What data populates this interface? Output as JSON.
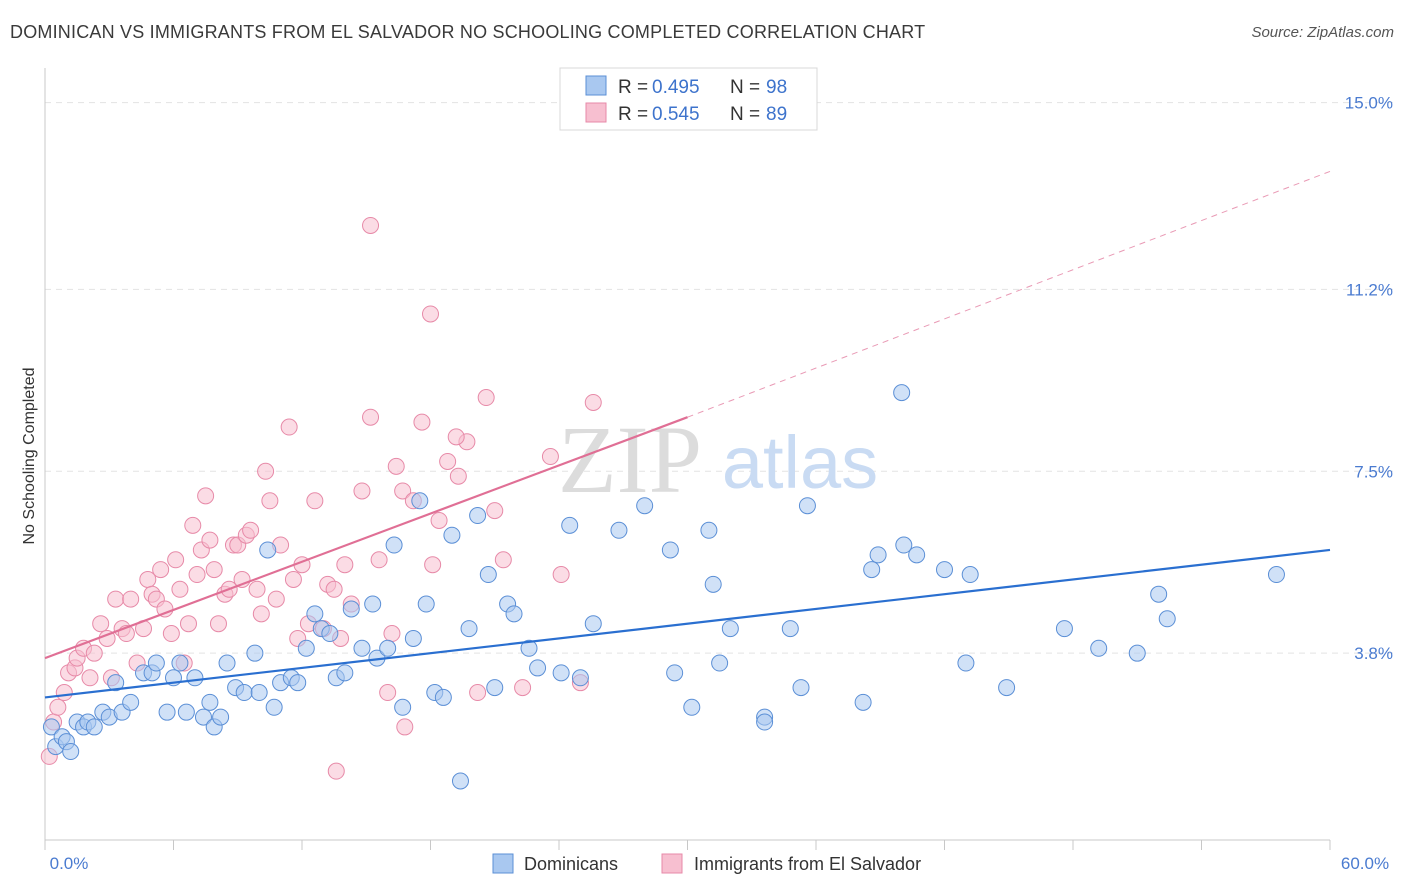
{
  "title": "DOMINICAN VS IMMIGRANTS FROM EL SALVADOR NO SCHOOLING COMPLETED CORRELATION CHART",
  "source": "Source: ZipAtlas.com",
  "watermark": {
    "part1": "ZIP",
    "part2": "atlas"
  },
  "colors": {
    "blue_fill": "#a9c8f0",
    "blue_stroke": "#5b8fd6",
    "blue_line": "#2a6fd0",
    "pink_fill": "#f7bfd0",
    "pink_stroke": "#e78aa8",
    "pink_line": "#e06f95",
    "grid": "#e3e3e3",
    "axis_text": "#4a7bd0"
  },
  "legend": {
    "rows": [
      {
        "r_label": "R = ",
        "r_value": "0.495",
        "n_label": "N = ",
        "n_value": "98"
      },
      {
        "r_label": "R = ",
        "r_value": "0.545",
        "n_label": "N = ",
        "n_value": "89"
      }
    ]
  },
  "chart_data": {
    "type": "scatter",
    "title": "DOMINICAN VS IMMIGRANTS FROM EL SALVADOR NO SCHOOLING COMPLETED CORRELATION CHART",
    "xlabel": "",
    "ylabel": "No Schooling Completed",
    "xlim": [
      0,
      60
    ],
    "ylim": [
      0,
      15.5
    ],
    "x_tick_labels": [
      "0.0%",
      "60.0%"
    ],
    "y_ticks": [
      3.8,
      7.5,
      11.2,
      15.0
    ],
    "y_tick_labels": [
      "3.8%",
      "7.5%",
      "11.2%",
      "15.0%"
    ],
    "grid": "horizontal dashed",
    "legend_position": "top-center",
    "series": [
      {
        "name": "Dominicans",
        "r": 0.495,
        "n": 98,
        "trend": {
          "x0": 0,
          "y0": 2.9,
          "x1": 60,
          "y1": 5.9
        },
        "points": [
          [
            0.3,
            2.3
          ],
          [
            0.5,
            1.9
          ],
          [
            0.8,
            2.1
          ],
          [
            1.0,
            2.0
          ],
          [
            1.2,
            1.8
          ],
          [
            1.5,
            2.4
          ],
          [
            1.8,
            2.3
          ],
          [
            2.0,
            2.4
          ],
          [
            2.3,
            2.3
          ],
          [
            2.7,
            2.6
          ],
          [
            3.0,
            2.5
          ],
          [
            3.3,
            3.2
          ],
          [
            3.6,
            2.6
          ],
          [
            4.0,
            2.8
          ],
          [
            4.6,
            3.4
          ],
          [
            5.0,
            3.4
          ],
          [
            5.2,
            3.6
          ],
          [
            5.7,
            2.6
          ],
          [
            6.0,
            3.3
          ],
          [
            6.3,
            3.6
          ],
          [
            6.6,
            2.6
          ],
          [
            7.0,
            3.3
          ],
          [
            7.4,
            2.5
          ],
          [
            7.7,
            2.8
          ],
          [
            7.9,
            2.3
          ],
          [
            8.2,
            2.5
          ],
          [
            8.5,
            3.6
          ],
          [
            8.9,
            3.1
          ],
          [
            9.3,
            3.0
          ],
          [
            9.8,
            3.8
          ],
          [
            10.0,
            3.0
          ],
          [
            10.4,
            5.9
          ],
          [
            10.7,
            2.7
          ],
          [
            11.0,
            3.2
          ],
          [
            11.5,
            3.3
          ],
          [
            11.8,
            3.2
          ],
          [
            12.2,
            3.9
          ],
          [
            12.6,
            4.6
          ],
          [
            12.9,
            4.3
          ],
          [
            13.3,
            4.2
          ],
          [
            13.6,
            3.3
          ],
          [
            14.0,
            3.4
          ],
          [
            14.3,
            4.7
          ],
          [
            14.8,
            3.9
          ],
          [
            15.3,
            4.8
          ],
          [
            15.5,
            3.7
          ],
          [
            16.0,
            3.9
          ],
          [
            16.3,
            6.0
          ],
          [
            16.7,
            2.7
          ],
          [
            17.2,
            4.1
          ],
          [
            17.5,
            6.9
          ],
          [
            17.8,
            4.8
          ],
          [
            18.2,
            3.0
          ],
          [
            18.6,
            2.9
          ],
          [
            19.0,
            6.2
          ],
          [
            19.4,
            1.2
          ],
          [
            19.8,
            4.3
          ],
          [
            20.2,
            6.6
          ],
          [
            20.7,
            5.4
          ],
          [
            21.0,
            3.1
          ],
          [
            21.6,
            4.8
          ],
          [
            21.9,
            4.6
          ],
          [
            22.6,
            3.9
          ],
          [
            23.0,
            3.5
          ],
          [
            24.1,
            3.4
          ],
          [
            24.5,
            6.4
          ],
          [
            25.0,
            3.3
          ],
          [
            25.6,
            4.4
          ],
          [
            26.8,
            6.3
          ],
          [
            28.0,
            6.8
          ],
          [
            29.2,
            5.9
          ],
          [
            29.4,
            3.4
          ],
          [
            30.2,
            2.7
          ],
          [
            31.0,
            6.3
          ],
          [
            31.2,
            5.2
          ],
          [
            31.5,
            3.6
          ],
          [
            32.0,
            4.3
          ],
          [
            33.6,
            2.5
          ],
          [
            33.6,
            2.4
          ],
          [
            34.8,
            4.3
          ],
          [
            35.3,
            3.1
          ],
          [
            35.6,
            6.8
          ],
          [
            38.2,
            2.8
          ],
          [
            38.6,
            5.5
          ],
          [
            38.9,
            5.8
          ],
          [
            40.0,
            9.1
          ],
          [
            40.1,
            6.0
          ],
          [
            40.7,
            5.8
          ],
          [
            42.0,
            5.5
          ],
          [
            43.0,
            3.6
          ],
          [
            43.2,
            5.4
          ],
          [
            44.9,
            3.1
          ],
          [
            47.6,
            4.3
          ],
          [
            49.2,
            3.9
          ],
          [
            51.0,
            3.8
          ],
          [
            52.0,
            5.0
          ],
          [
            52.4,
            4.5
          ],
          [
            57.5,
            5.4
          ]
        ]
      },
      {
        "name": "Immigrants from El Salvador",
        "r": 0.545,
        "n": 89,
        "trend": {
          "x0": 0,
          "y0": 3.7,
          "x1": 30,
          "y1": 8.6
        },
        "trend_extended": {
          "x0": 30,
          "y0": 8.6,
          "x1": 60,
          "y1": 13.6
        },
        "points": [
          [
            0.2,
            1.7
          ],
          [
            0.4,
            2.4
          ],
          [
            0.6,
            2.7
          ],
          [
            0.9,
            3.0
          ],
          [
            1.1,
            3.4
          ],
          [
            1.4,
            3.5
          ],
          [
            1.5,
            3.7
          ],
          [
            1.8,
            3.9
          ],
          [
            2.1,
            3.3
          ],
          [
            2.3,
            3.8
          ],
          [
            2.6,
            4.4
          ],
          [
            2.9,
            4.1
          ],
          [
            3.1,
            3.3
          ],
          [
            3.3,
            4.9
          ],
          [
            3.6,
            4.3
          ],
          [
            3.8,
            4.2
          ],
          [
            4.0,
            4.9
          ],
          [
            4.3,
            3.6
          ],
          [
            4.6,
            4.3
          ],
          [
            4.8,
            5.3
          ],
          [
            5.0,
            5.0
          ],
          [
            5.2,
            4.9
          ],
          [
            5.4,
            5.5
          ],
          [
            5.6,
            4.7
          ],
          [
            5.9,
            4.2
          ],
          [
            6.1,
            5.7
          ],
          [
            6.3,
            5.1
          ],
          [
            6.5,
            3.6
          ],
          [
            6.7,
            4.4
          ],
          [
            6.9,
            6.4
          ],
          [
            7.1,
            5.4
          ],
          [
            7.3,
            5.9
          ],
          [
            7.5,
            7.0
          ],
          [
            7.7,
            6.1
          ],
          [
            7.9,
            5.5
          ],
          [
            8.1,
            4.4
          ],
          [
            8.4,
            5.0
          ],
          [
            8.6,
            5.1
          ],
          [
            8.8,
            6.0
          ],
          [
            9.0,
            6.0
          ],
          [
            9.2,
            5.3
          ],
          [
            9.4,
            6.2
          ],
          [
            9.6,
            6.3
          ],
          [
            9.9,
            5.1
          ],
          [
            10.1,
            4.6
          ],
          [
            10.3,
            7.5
          ],
          [
            10.5,
            6.9
          ],
          [
            10.8,
            4.9
          ],
          [
            11.0,
            6.0
          ],
          [
            11.4,
            8.4
          ],
          [
            11.6,
            5.3
          ],
          [
            11.8,
            4.1
          ],
          [
            12.0,
            5.6
          ],
          [
            12.3,
            4.4
          ],
          [
            12.6,
            6.9
          ],
          [
            13.0,
            4.3
          ],
          [
            13.2,
            5.2
          ],
          [
            13.5,
            5.1
          ],
          [
            13.8,
            4.1
          ],
          [
            14.0,
            5.6
          ],
          [
            14.3,
            4.8
          ],
          [
            14.8,
            7.1
          ],
          [
            15.2,
            12.5
          ],
          [
            15.6,
            5.7
          ],
          [
            16.0,
            3.0
          ],
          [
            16.2,
            4.2
          ],
          [
            16.7,
            7.1
          ],
          [
            17.2,
            6.9
          ],
          [
            17.6,
            8.5
          ],
          [
            18.0,
            10.7
          ],
          [
            18.4,
            6.5
          ],
          [
            18.8,
            7.7
          ],
          [
            19.3,
            7.4
          ],
          [
            19.7,
            8.1
          ],
          [
            20.2,
            3.0
          ],
          [
            20.6,
            9.0
          ],
          [
            21.0,
            6.7
          ],
          [
            21.4,
            5.7
          ],
          [
            22.3,
            3.1
          ],
          [
            23.6,
            7.8
          ],
          [
            24.1,
            5.4
          ],
          [
            25.0,
            3.2
          ],
          [
            25.6,
            8.9
          ],
          [
            15.2,
            8.6
          ],
          [
            16.4,
            7.6
          ],
          [
            18.1,
            5.6
          ],
          [
            19.2,
            8.2
          ],
          [
            13.6,
            1.4
          ],
          [
            16.8,
            2.3
          ]
        ]
      }
    ]
  },
  "bottom_legend": [
    {
      "label": "Dominicans"
    },
    {
      "label": "Immigrants from El Salvador"
    }
  ]
}
